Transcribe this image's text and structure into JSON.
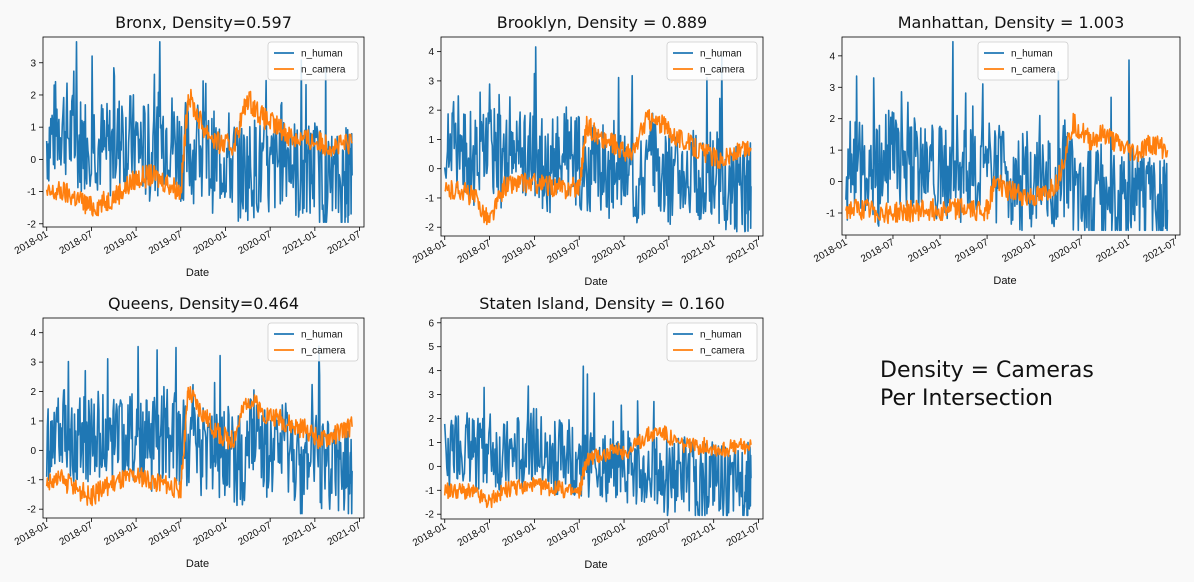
{
  "colors": {
    "n_human": "#1f77b4",
    "n_camera": "#ff7f0e"
  },
  "note": {
    "line1": "Density = Cameras",
    "line2": "Per Intersection"
  },
  "chart_data": [
    {
      "type": "line",
      "id": "bronx",
      "title": "Bronx, Density=0.597",
      "xlabel": "Date",
      "ylabel": "",
      "xticks": [
        "2018-01",
        "2018-07",
        "2019-01",
        "2019-07",
        "2020-01",
        "2020-07",
        "2021-01",
        "2021-07"
      ],
      "yticks": [
        -2,
        -1,
        0,
        1,
        2,
        3
      ],
      "ylim": [
        -2.1,
        3.8
      ],
      "legend": "upper right",
      "grid": false,
      "series": [
        {
          "name": "n_human",
          "x": [
            "2018-01",
            "2018-03",
            "2018-05",
            "2018-07",
            "2018-09",
            "2018-11",
            "2019-01",
            "2019-03",
            "2019-05",
            "2019-07",
            "2019-09",
            "2019-11",
            "2020-01",
            "2020-03",
            "2020-05",
            "2020-07",
            "2020-09",
            "2020-11",
            "2021-01",
            "2021-03",
            "2021-05",
            "2021-06"
          ],
          "y": [
            0.6,
            1.2,
            0.4,
            0.8,
            0.2,
            0.6,
            0.5,
            0.1,
            0.9,
            0.3,
            0.2,
            -0.1,
            0.1,
            -0.4,
            -0.2,
            -0.5,
            0.4,
            -0.6,
            -0.3,
            -0.8,
            -0.7,
            -0.5
          ]
        },
        {
          "name": "n_camera",
          "x": [
            "2018-01",
            "2018-03",
            "2018-05",
            "2018-07",
            "2018-09",
            "2018-11",
            "2019-01",
            "2019-03",
            "2019-05",
            "2019-07",
            "2019-08",
            "2019-10",
            "2019-12",
            "2020-02",
            "2020-04",
            "2020-06",
            "2020-08",
            "2020-10",
            "2020-12",
            "2021-02",
            "2021-04",
            "2021-06"
          ],
          "y": [
            -1.1,
            -1.0,
            -1.2,
            -1.5,
            -1.3,
            -1.0,
            -0.6,
            -0.5,
            -0.7,
            -1.0,
            2.0,
            1.0,
            0.5,
            0.4,
            1.9,
            1.3,
            1.0,
            0.7,
            0.6,
            0.5,
            0.4,
            0.5
          ]
        }
      ]
    },
    {
      "type": "line",
      "id": "brooklyn",
      "title": "Brooklyn, Density = 0.889",
      "xlabel": "Date",
      "ylabel": "",
      "xticks": [
        "2018-01",
        "2018-07",
        "2019-01",
        "2019-07",
        "2020-01",
        "2020-07",
        "2021-01",
        "2021-07"
      ],
      "yticks": [
        -2,
        -1,
        0,
        1,
        2,
        3,
        4
      ],
      "ylim": [
        -2.3,
        4.5
      ],
      "legend": "upper right",
      "grid": false,
      "series": [
        {
          "name": "n_human",
          "x": [
            "2018-01",
            "2018-03",
            "2018-05",
            "2018-07",
            "2018-09",
            "2018-11",
            "2019-01",
            "2019-03",
            "2019-05",
            "2019-07",
            "2019-09",
            "2019-11",
            "2020-01",
            "2020-03",
            "2020-05",
            "2020-07",
            "2020-09",
            "2020-11",
            "2021-01",
            "2021-03",
            "2021-05",
            "2021-06"
          ],
          "y": [
            0.5,
            1.0,
            0.2,
            0.7,
            0.1,
            0.5,
            0.3,
            0.0,
            0.6,
            0.2,
            0.1,
            -0.2,
            0.0,
            -0.3,
            0.5,
            -0.4,
            0.2,
            -0.6,
            -0.2,
            -0.7,
            -0.8,
            -0.6
          ]
        },
        {
          "name": "n_camera",
          "x": [
            "2018-01",
            "2018-03",
            "2018-05",
            "2018-07",
            "2018-09",
            "2018-11",
            "2019-01",
            "2019-03",
            "2019-05",
            "2019-07",
            "2019-08",
            "2019-10",
            "2019-12",
            "2020-02",
            "2020-04",
            "2020-06",
            "2020-08",
            "2020-10",
            "2020-12",
            "2021-02",
            "2021-04",
            "2021-06"
          ],
          "y": [
            -0.8,
            -0.7,
            -1.0,
            -1.8,
            -0.6,
            -0.5,
            -0.5,
            -0.6,
            -0.7,
            -0.6,
            1.5,
            1.0,
            0.8,
            0.4,
            1.7,
            1.5,
            1.1,
            0.8,
            0.5,
            0.3,
            0.5,
            0.7
          ]
        }
      ]
    },
    {
      "type": "line",
      "id": "manhattan",
      "title": "Manhattan, Density = 1.003",
      "xlabel": "Date",
      "ylabel": "",
      "xticks": [
        "2018-01",
        "2018-07",
        "2019-01",
        "2019-07",
        "2020-01",
        "2020-07",
        "2021-01",
        "2021-07"
      ],
      "yticks": [
        -1,
        0,
        1,
        2,
        3,
        4
      ],
      "ylim": [
        -1.7,
        4.6
      ],
      "legend": "upper center",
      "grid": false,
      "series": [
        {
          "name": "n_human",
          "x": [
            "2018-01",
            "2018-03",
            "2018-05",
            "2018-07",
            "2018-09",
            "2018-11",
            "2019-01",
            "2019-03",
            "2019-05",
            "2019-07",
            "2019-09",
            "2019-11",
            "2020-01",
            "2020-03",
            "2020-05",
            "2020-07",
            "2020-09",
            "2020-11",
            "2021-01",
            "2021-03",
            "2021-05",
            "2021-06"
          ],
          "y": [
            0.3,
            0.6,
            0.1,
            0.9,
            0.4,
            0.6,
            0.2,
            0.1,
            0.5,
            0.3,
            0.2,
            -0.1,
            0.1,
            -0.3,
            0.4,
            -0.5,
            -0.2,
            -0.6,
            -0.3,
            -0.7,
            -0.8,
            -0.9
          ]
        },
        {
          "name": "n_camera",
          "x": [
            "2018-01",
            "2018-03",
            "2018-05",
            "2018-07",
            "2018-09",
            "2018-11",
            "2019-01",
            "2019-03",
            "2019-05",
            "2019-07",
            "2019-08",
            "2019-10",
            "2019-12",
            "2020-02",
            "2020-04",
            "2020-06",
            "2020-08",
            "2020-10",
            "2020-12",
            "2021-02",
            "2021-04",
            "2021-06"
          ],
          "y": [
            -0.9,
            -0.9,
            -0.95,
            -1.0,
            -0.95,
            -0.9,
            -0.9,
            -0.85,
            -0.9,
            -0.9,
            0.0,
            -0.3,
            -0.5,
            -0.5,
            0.0,
            1.9,
            1.3,
            1.5,
            1.1,
            0.9,
            1.2,
            1.0
          ]
        }
      ]
    },
    {
      "type": "line",
      "id": "queens",
      "title": "Queens, Density=0.464",
      "xlabel": "Date",
      "ylabel": "",
      "xticks": [
        "2018-01",
        "2018-07",
        "2019-01",
        "2019-07",
        "2020-01",
        "2020-07",
        "2021-01",
        "2021-07"
      ],
      "yticks": [
        -2,
        -1,
        0,
        1,
        2,
        3,
        4
      ],
      "ylim": [
        -2.3,
        4.5
      ],
      "legend": "upper right",
      "grid": false,
      "series": [
        {
          "name": "n_human",
          "x": [
            "2018-01",
            "2018-03",
            "2018-05",
            "2018-07",
            "2018-09",
            "2018-11",
            "2019-01",
            "2019-03",
            "2019-05",
            "2019-07",
            "2019-09",
            "2019-11",
            "2020-01",
            "2020-03",
            "2020-05",
            "2020-07",
            "2020-09",
            "2020-11",
            "2021-01",
            "2021-03",
            "2021-05",
            "2021-06"
          ],
          "y": [
            0.4,
            0.9,
            0.2,
            0.6,
            0.3,
            0.5,
            0.4,
            0.1,
            0.7,
            0.2,
            0.0,
            -0.2,
            0.0,
            -0.4,
            0.6,
            -0.5,
            0.1,
            -0.7,
            -0.3,
            -0.6,
            -0.9,
            -0.7
          ]
        },
        {
          "name": "n_camera",
          "x": [
            "2018-01",
            "2018-03",
            "2018-05",
            "2018-07",
            "2018-09",
            "2018-11",
            "2019-01",
            "2019-03",
            "2019-05",
            "2019-07",
            "2019-08",
            "2019-10",
            "2019-12",
            "2020-02",
            "2020-04",
            "2020-06",
            "2020-08",
            "2020-10",
            "2020-12",
            "2021-02",
            "2021-04",
            "2021-06"
          ],
          "y": [
            -1.1,
            -1.0,
            -1.3,
            -1.6,
            -1.2,
            -1.0,
            -0.9,
            -1.0,
            -1.2,
            -1.3,
            2.0,
            1.2,
            0.6,
            0.3,
            1.8,
            1.3,
            1.1,
            0.8,
            0.7,
            0.3,
            0.6,
            0.8
          ]
        }
      ]
    },
    {
      "type": "line",
      "id": "staten",
      "title": "Staten Island, Density = 0.160",
      "xlabel": "Date",
      "ylabel": "",
      "xticks": [
        "2018-01",
        "2018-07",
        "2019-01",
        "2019-07",
        "2020-01",
        "2020-07",
        "2021-01",
        "2021-07"
      ],
      "yticks": [
        -2,
        -1,
        0,
        1,
        2,
        3,
        4,
        5,
        6
      ],
      "ylim": [
        -2.2,
        6.2
      ],
      "legend": "upper right",
      "grid": false,
      "series": [
        {
          "name": "n_human",
          "x": [
            "2018-01",
            "2018-03",
            "2018-05",
            "2018-07",
            "2018-09",
            "2018-11",
            "2019-01",
            "2019-03",
            "2019-05",
            "2019-07",
            "2019-09",
            "2019-11",
            "2020-01",
            "2020-03",
            "2020-05",
            "2020-07",
            "2020-09",
            "2020-11",
            "2021-01",
            "2021-03",
            "2021-05",
            "2021-06"
          ],
          "y": [
            0.3,
            1.0,
            0.5,
            0.8,
            0.2,
            0.6,
            1.0,
            0.0,
            0.5,
            0.2,
            0.3,
            -0.3,
            0.1,
            -0.5,
            -0.3,
            -0.6,
            -0.2,
            -0.8,
            -0.4,
            -0.9,
            -0.6,
            -0.5
          ]
        },
        {
          "name": "n_camera",
          "x": [
            "2018-01",
            "2018-03",
            "2018-05",
            "2018-07",
            "2018-09",
            "2018-11",
            "2019-01",
            "2019-03",
            "2019-05",
            "2019-07",
            "2019-08",
            "2019-10",
            "2019-12",
            "2020-02",
            "2020-04",
            "2020-06",
            "2020-08",
            "2020-10",
            "2020-12",
            "2021-02",
            "2021-04",
            "2021-06"
          ],
          "y": [
            -1.0,
            -1.0,
            -1.1,
            -1.5,
            -1.0,
            -0.9,
            -0.8,
            -0.9,
            -1.0,
            -1.1,
            0.3,
            0.5,
            0.6,
            0.7,
            1.3,
            1.5,
            1.0,
            0.8,
            0.9,
            0.7,
            0.8,
            0.9
          ]
        }
      ]
    }
  ]
}
